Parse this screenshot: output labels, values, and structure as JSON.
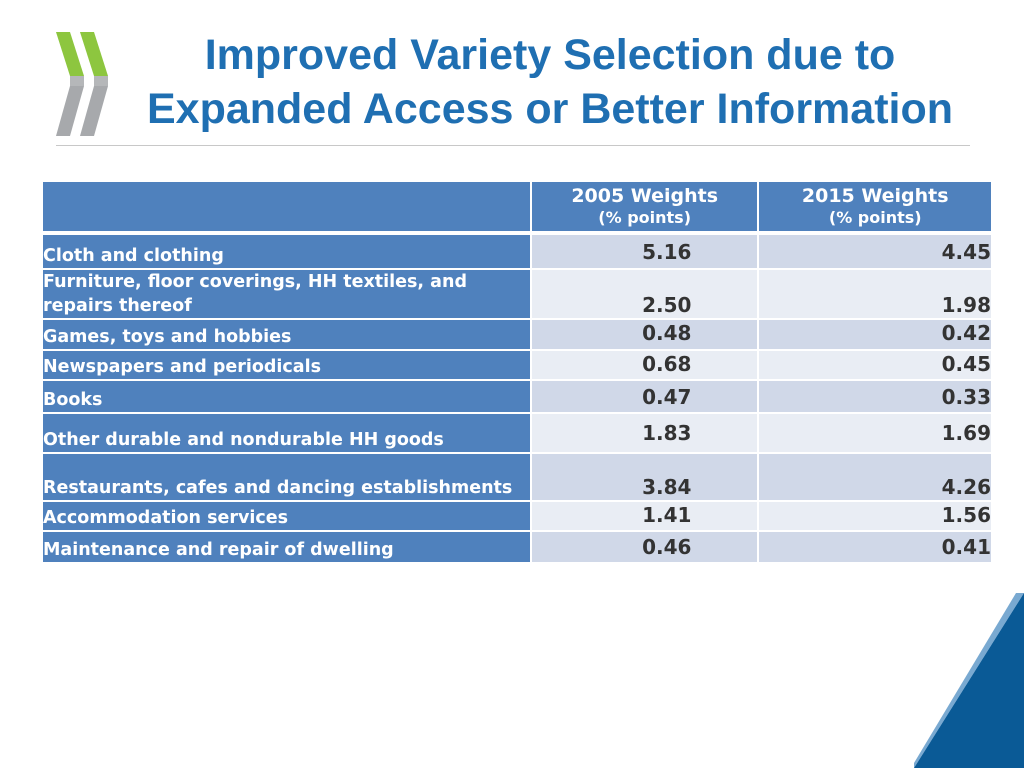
{
  "slide": {
    "title_line1": "Improved Variety Selection due to",
    "title_line2": "Expanded Access or Better Information"
  },
  "colors": {
    "title": "#1f6fb2",
    "table_header": "#4f81bd",
    "row_shade_dark": "#d0d8e8",
    "row_shade_light": "#e9edf4",
    "logo_green": "#8dc63f",
    "logo_grey": "#a7a9ac",
    "corner_accent": "#0a5a96"
  },
  "icons": {
    "logo": "oecd-chevron-logo",
    "corner": "corner-triangle-decoration"
  },
  "table": {
    "headers": [
      {
        "main": "",
        "sub": ""
      },
      {
        "main": "2005 Weights",
        "sub": "(% points)"
      },
      {
        "main": "2015 Weights",
        "sub": "(% points)"
      }
    ],
    "rows": [
      {
        "label": "Cloth and clothing",
        "v2005": "5.16",
        "v2015": "4.45"
      },
      {
        "label": "Furniture, floor coverings, HH textiles, and repairs thereof",
        "v2005": "2.50",
        "v2015": "1.98"
      },
      {
        "label": "Games, toys and hobbies",
        "v2005": "0.48",
        "v2015": "0.42"
      },
      {
        "label": "Newspapers and periodicals",
        "v2005": "0.68",
        "v2015": "0.45"
      },
      {
        "label": "Books",
        "v2005": "0.47",
        "v2015": "0.33"
      },
      {
        "label": "Other durable and nondurable HH goods",
        "v2005": "1.83",
        "v2015": "1.69"
      },
      {
        "label": "Restaurants, cafes and dancing establishments",
        "v2005": "3.84",
        "v2015": "4.26"
      },
      {
        "label": "Accommodation services",
        "v2005": "1.41",
        "v2015": "1.56"
      },
      {
        "label": "Maintenance and repair of dwelling",
        "v2005": "0.46",
        "v2015": "0.41"
      }
    ]
  }
}
